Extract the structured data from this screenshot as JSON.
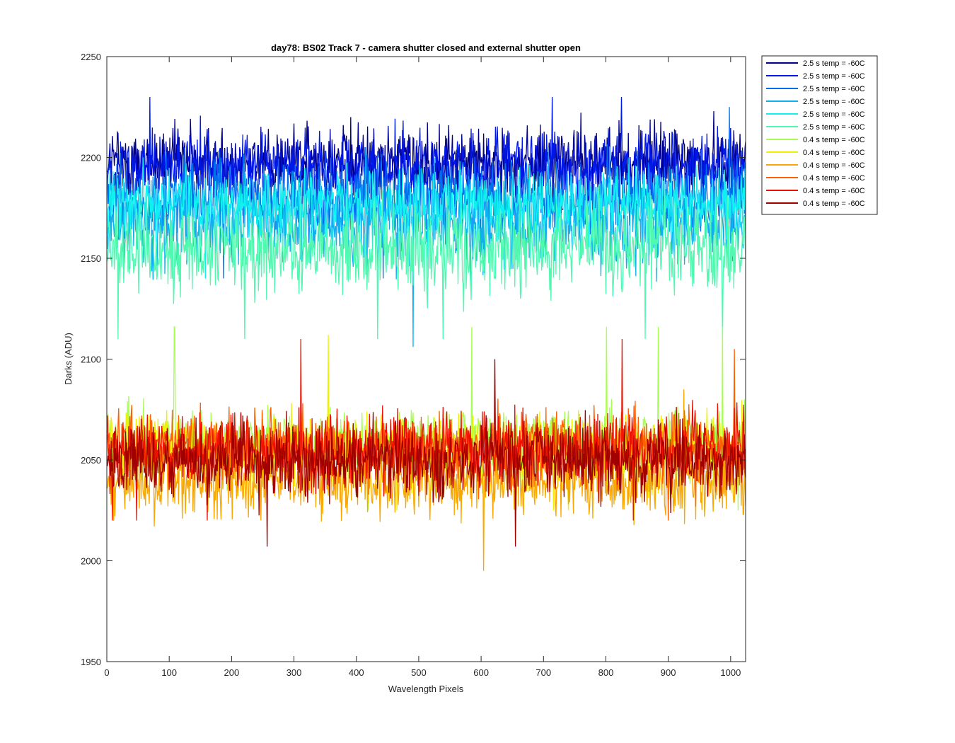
{
  "chart_data": {
    "type": "line",
    "title": "day78: BS02  Track 7 - camera shutter closed and external shutter open",
    "xlabel": "Wavelength Pixels",
    "ylabel": "Darks (ADU)",
    "xlim": [
      0,
      1024
    ],
    "ylim": [
      1950,
      2250
    ],
    "x_ticks": [
      0,
      100,
      200,
      300,
      400,
      500,
      600,
      700,
      800,
      900,
      1000
    ],
    "y_ticks": [
      1950,
      2000,
      2050,
      2100,
      2150,
      2200,
      2250
    ],
    "grid": false,
    "legend_position": "outside-top-right",
    "n_points_per_series": 1024,
    "series": [
      {
        "name": "2.5 s temp = -60C",
        "color": "#00008f",
        "mean": 2198,
        "noise": 9,
        "min": 2168,
        "max": 2238
      },
      {
        "name": "2.5 s temp = -60C",
        "color": "#0018e8",
        "mean": 2195,
        "noise": 9,
        "min": 2165,
        "max": 2230
      },
      {
        "name": "2.5 s temp = -60C",
        "color": "#0070ee",
        "mean": 2180,
        "noise": 10,
        "min": 2140,
        "max": 2225
      },
      {
        "name": "2.5 s temp = -60C",
        "color": "#10b0f0",
        "mean": 2168,
        "noise": 11,
        "min": 2106,
        "max": 2205
      },
      {
        "name": "2.5 s temp = -60C",
        "color": "#10f0f0",
        "mean": 2176,
        "noise": 8,
        "min": 2140,
        "max": 2200
      },
      {
        "name": "2.5 s temp = -60C",
        "color": "#50f8b0",
        "mean": 2155,
        "noise": 11,
        "min": 2110,
        "max": 2190
      },
      {
        "name": "0.4 s temp = -60C",
        "color": "#a8ff50",
        "mean": 2058,
        "noise": 9,
        "min": 2025,
        "max": 2116
      },
      {
        "name": "0.4 s temp = -60C",
        "color": "#f0f000",
        "mean": 2055,
        "noise": 9,
        "min": 2025,
        "max": 2112
      },
      {
        "name": "0.4 s temp = -60C",
        "color": "#f8a800",
        "mean": 2040,
        "noise": 9,
        "min": 1995,
        "max": 2085
      },
      {
        "name": "0.4 s temp = -60C",
        "color": "#ff6000",
        "mean": 2056,
        "noise": 9,
        "min": 2020,
        "max": 2105
      },
      {
        "name": "0.4 s temp = -60C",
        "color": "#ee1000",
        "mean": 2055,
        "noise": 9,
        "min": 2020,
        "max": 2110
      },
      {
        "name": "0.4 s temp = -60C",
        "color": "#a00000",
        "mean": 2050,
        "noise": 9,
        "min": 2007,
        "max": 2100
      }
    ]
  }
}
